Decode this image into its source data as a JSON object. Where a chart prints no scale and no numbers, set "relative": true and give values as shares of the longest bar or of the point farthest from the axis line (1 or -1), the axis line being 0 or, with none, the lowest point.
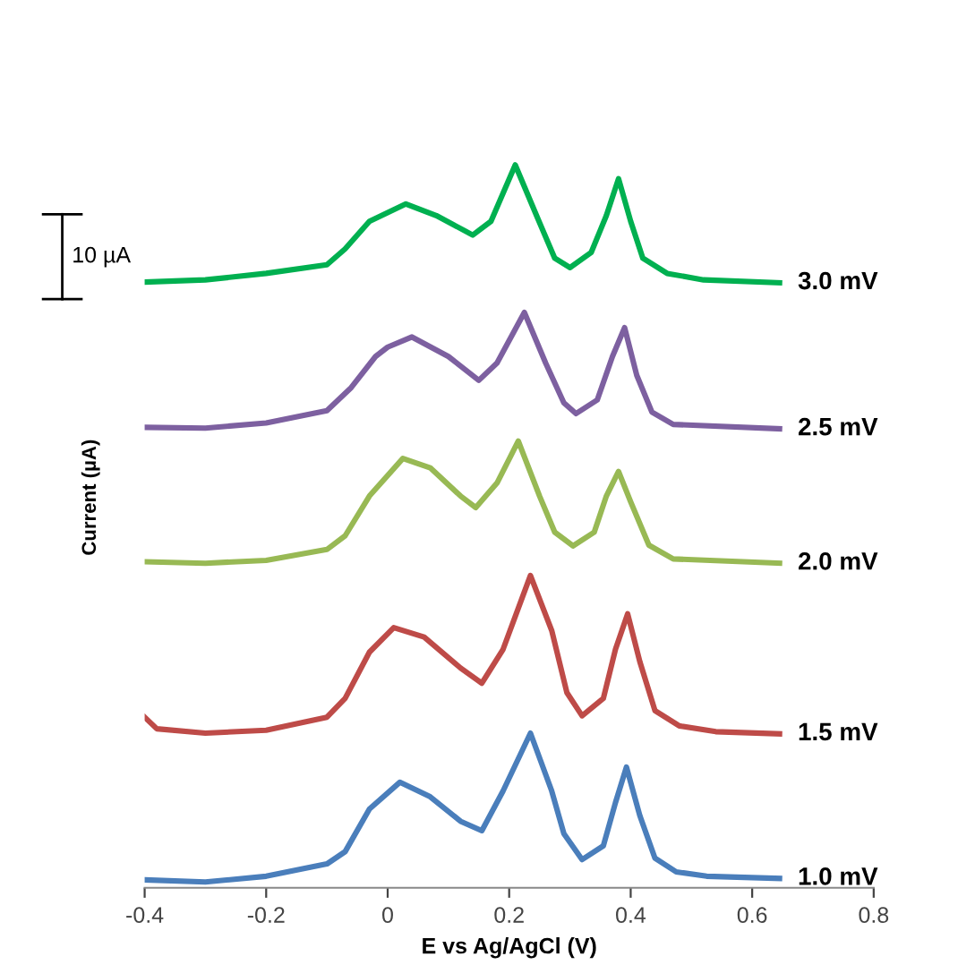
{
  "chart_data": {
    "type": "line",
    "relative": true,
    "xlabel": "E vs Ag/AgCl (V)",
    "ylabel": "Current (µA)",
    "annotations": [
      "10 µA"
    ],
    "xlim": [
      -0.4,
      0.8
    ],
    "xticks": [
      -0.4,
      -0.2,
      0,
      0.2,
      0.4,
      0.6,
      0.8
    ],
    "tick_labels": "x",
    "grid": false,
    "legend": false,
    "marker": "none",
    "line_style": "solid",
    "series": [
      {
        "name": "1.0 mV",
        "color": "#4a7ebb",
        "x": [
          -0.4,
          -0.3,
          -0.2,
          -0.1,
          -0.07,
          -0.03,
          0.02,
          0.07,
          0.12,
          0.155,
          0.19,
          0.235,
          0.27,
          0.29,
          0.32,
          0.355,
          0.375,
          0.393,
          0.415,
          0.44,
          0.475,
          0.525,
          0.645
        ],
        "values": [
          0.011,
          0.008,
          0.016,
          0.033,
          0.05,
          0.109,
          0.146,
          0.126,
          0.092,
          0.079,
          0.134,
          0.214,
          0.134,
          0.075,
          0.039,
          0.058,
          0.118,
          0.167,
          0.1,
          0.041,
          0.022,
          0.016,
          0.013
        ]
      },
      {
        "name": "1.5 mV",
        "color": "#be4b48",
        "x": [
          -0.4,
          -0.38,
          -0.3,
          -0.2,
          -0.1,
          -0.07,
          -0.03,
          0.01,
          0.06,
          0.12,
          0.155,
          0.19,
          0.235,
          0.27,
          0.295,
          0.32,
          0.355,
          0.375,
          0.395,
          0.415,
          0.44,
          0.48,
          0.54,
          0.645
        ],
        "values": [
          0.236,
          0.22,
          0.214,
          0.218,
          0.236,
          0.262,
          0.326,
          0.36,
          0.347,
          0.304,
          0.283,
          0.33,
          0.432,
          0.356,
          0.27,
          0.238,
          0.262,
          0.33,
          0.379,
          0.313,
          0.245,
          0.224,
          0.216,
          0.213
        ]
      },
      {
        "name": "2.0 mV",
        "color": "#98b954",
        "x": [
          -0.4,
          -0.3,
          -0.2,
          -0.1,
          -0.07,
          -0.03,
          0.025,
          0.07,
          0.12,
          0.145,
          0.18,
          0.215,
          0.25,
          0.275,
          0.305,
          0.34,
          0.36,
          0.38,
          0.4,
          0.43,
          0.47,
          0.645
        ],
        "values": [
          0.451,
          0.449,
          0.453,
          0.468,
          0.487,
          0.542,
          0.594,
          0.581,
          0.542,
          0.526,
          0.56,
          0.618,
          0.542,
          0.492,
          0.473,
          0.492,
          0.542,
          0.576,
          0.534,
          0.474,
          0.455,
          0.449
        ]
      },
      {
        "name": "2.5 mV",
        "color": "#7d60a0",
        "x": [
          -0.4,
          -0.3,
          -0.2,
          -0.1,
          -0.06,
          -0.02,
          0.0,
          0.04,
          0.1,
          0.15,
          0.18,
          0.225,
          0.26,
          0.29,
          0.31,
          0.345,
          0.37,
          0.39,
          0.41,
          0.435,
          0.47,
          0.645
        ],
        "values": [
          0.637,
          0.636,
          0.643,
          0.66,
          0.692,
          0.735,
          0.748,
          0.762,
          0.735,
          0.702,
          0.726,
          0.796,
          0.726,
          0.671,
          0.656,
          0.675,
          0.735,
          0.775,
          0.709,
          0.658,
          0.641,
          0.635
        ]
      },
      {
        "name": "3.0 mV",
        "color": "#00b050",
        "x": [
          -0.4,
          -0.3,
          -0.2,
          -0.1,
          -0.07,
          -0.03,
          0.03,
          0.08,
          0.14,
          0.17,
          0.21,
          0.245,
          0.275,
          0.3,
          0.335,
          0.36,
          0.38,
          0.4,
          0.42,
          0.46,
          0.52,
          0.645
        ],
        "values": [
          0.838,
          0.841,
          0.85,
          0.862,
          0.884,
          0.922,
          0.946,
          0.93,
          0.903,
          0.922,
          1.0,
          0.93,
          0.871,
          0.858,
          0.879,
          0.93,
          0.981,
          0.922,
          0.871,
          0.85,
          0.841,
          0.837
        ]
      }
    ]
  }
}
